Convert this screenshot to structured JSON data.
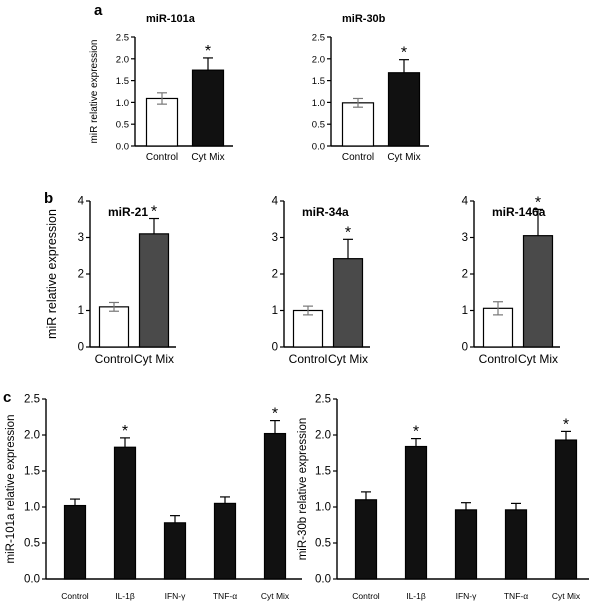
{
  "panel_labels": [
    "a",
    "b",
    "c"
  ],
  "chart_data": [
    {
      "type": "bar",
      "panel": "a",
      "title": "miR-101a",
      "ylabel": "miR relative expression",
      "ylim": [
        0,
        2.5
      ],
      "yticks": [
        "0.0",
        "0.5",
        "1.0",
        "1.5",
        "2.0",
        "2.5"
      ],
      "categories": [
        "Control",
        "Cyt Mix"
      ],
      "values": [
        1.09,
        1.74
      ],
      "errors": [
        0.13,
        0.28
      ],
      "significant": [
        false,
        true
      ],
      "colors": [
        "#ffffff",
        "#111111"
      ]
    },
    {
      "type": "bar",
      "panel": "a",
      "title": "miR-30b",
      "ylabel": "",
      "ylim": [
        0,
        2.5
      ],
      "yticks": [
        "0.0",
        "0.5",
        "1.0",
        "1.5",
        "2.0",
        "2.5"
      ],
      "categories": [
        "Control",
        "Cyt Mix"
      ],
      "values": [
        0.99,
        1.68
      ],
      "errors": [
        0.1,
        0.3
      ],
      "significant": [
        false,
        true
      ],
      "colors": [
        "#ffffff",
        "#111111"
      ]
    },
    {
      "type": "bar",
      "panel": "b",
      "title": "miR-21",
      "ylabel": "miR relative expression",
      "ylim": [
        0,
        4
      ],
      "yticks": [
        "0",
        "1",
        "2",
        "3",
        "4"
      ],
      "categories": [
        "Control",
        "Cyt Mix"
      ],
      "values": [
        1.1,
        3.1
      ],
      "errors": [
        0.12,
        0.42
      ],
      "significant": [
        false,
        true
      ],
      "colors": [
        "#ffffff",
        "#4a4a4a"
      ]
    },
    {
      "type": "bar",
      "panel": "b",
      "title": "miR-34a",
      "ylabel": "",
      "ylim": [
        0,
        4
      ],
      "yticks": [
        "0",
        "1",
        "2",
        "3",
        "4"
      ],
      "categories": [
        "Control",
        "Cyt Mix"
      ],
      "values": [
        1.0,
        2.42
      ],
      "errors": [
        0.12,
        0.53
      ],
      "significant": [
        false,
        true
      ],
      "colors": [
        "#ffffff",
        "#4a4a4a"
      ]
    },
    {
      "type": "bar",
      "panel": "b",
      "title": "miR-146a",
      "ylabel": "",
      "ylim": [
        0,
        4
      ],
      "yticks": [
        "0",
        "1",
        "2",
        "3",
        "4"
      ],
      "categories": [
        "Control",
        "Cyt Mix"
      ],
      "values": [
        1.06,
        3.05
      ],
      "errors": [
        0.18,
        0.72
      ],
      "significant": [
        false,
        true
      ],
      "colors": [
        "#ffffff",
        "#4a4a4a"
      ]
    },
    {
      "type": "bar",
      "panel": "c",
      "title": "",
      "ylabel": "miR-101a relative expression",
      "ylim": [
        0,
        2.5
      ],
      "yticks": [
        "0.0",
        "0.5",
        "1.0",
        "1.5",
        "2.0",
        "2.5"
      ],
      "categories": [
        "Control",
        "IL-1β",
        "IFN-γ",
        "TNF-α",
        "Cyt Mix"
      ],
      "values": [
        1.02,
        1.83,
        0.78,
        1.05,
        2.02
      ],
      "errors": [
        0.09,
        0.13,
        0.1,
        0.09,
        0.18
      ],
      "significant": [
        false,
        true,
        false,
        false,
        true
      ],
      "colors": [
        "#111111",
        "#111111",
        "#111111",
        "#111111",
        "#111111"
      ]
    },
    {
      "type": "bar",
      "panel": "c",
      "title": "",
      "ylabel": "miR-30b relative expression",
      "ylim": [
        0,
        2.5
      ],
      "yticks": [
        "0.0",
        "0.5",
        "1.0",
        "1.5",
        "2.0",
        "2.5"
      ],
      "categories": [
        "Control",
        "IL-1β",
        "IFN-γ",
        "TNF-α",
        "Cyt Mix"
      ],
      "values": [
        1.1,
        1.84,
        0.96,
        0.96,
        1.93
      ],
      "errors": [
        0.11,
        0.11,
        0.1,
        0.09,
        0.12
      ],
      "significant": [
        false,
        true,
        false,
        false,
        true
      ],
      "colors": [
        "#111111",
        "#111111",
        "#111111",
        "#111111",
        "#111111"
      ]
    }
  ],
  "significance_symbol": "*"
}
